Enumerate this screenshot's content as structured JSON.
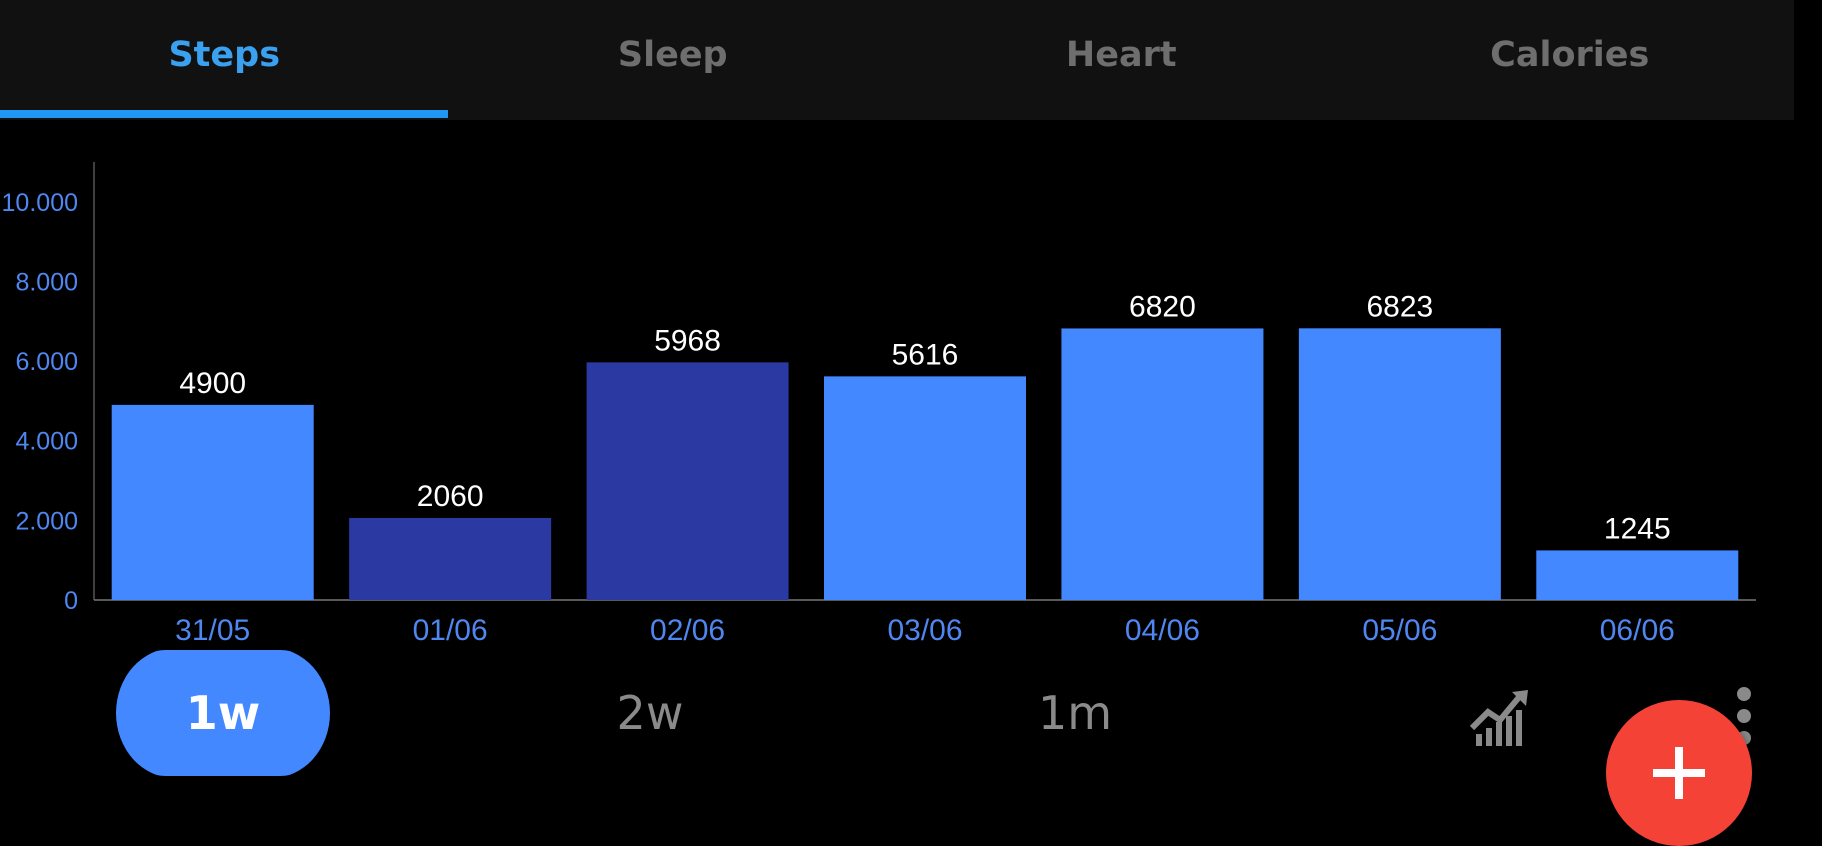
{
  "tabs": [
    {
      "label": "Steps",
      "active": true
    },
    {
      "label": "Sleep",
      "active": false
    },
    {
      "label": "Heart",
      "active": false
    },
    {
      "label": "Calories",
      "active": false
    }
  ],
  "colors": {
    "accent": "#2196f3",
    "bar_light": "#4488ff",
    "bar_dark": "#2b3aa3",
    "axis_text": "#4f86f0",
    "fab": "#f44336"
  },
  "chart_data": {
    "type": "bar",
    "categories": [
      "31/05",
      "01/06",
      "02/06",
      "03/06",
      "04/06",
      "05/06",
      "06/06"
    ],
    "values": [
      4900,
      2060,
      5968,
      5616,
      6820,
      6823,
      1245
    ],
    "value_labels": [
      "4900",
      "2060",
      "5968",
      "5616",
      "6820",
      "6823",
      "1245"
    ],
    "highlighted": [
      false,
      true,
      true,
      false,
      false,
      false,
      false
    ],
    "yticks": [
      0,
      2000,
      4000,
      6000,
      8000,
      10000
    ],
    "ytick_labels": [
      "0",
      "2.000",
      "4.000",
      "6.000",
      "8.000",
      "10.000"
    ],
    "ylim": [
      0,
      11000
    ],
    "grid": false
  },
  "ranges": [
    {
      "label": "1w",
      "active": true
    },
    {
      "label": "2w",
      "active": false
    },
    {
      "label": "1m",
      "active": false
    }
  ],
  "icons": {
    "trend": "trend-chart-icon",
    "more": "more-vert-icon",
    "add": "plus-icon"
  }
}
